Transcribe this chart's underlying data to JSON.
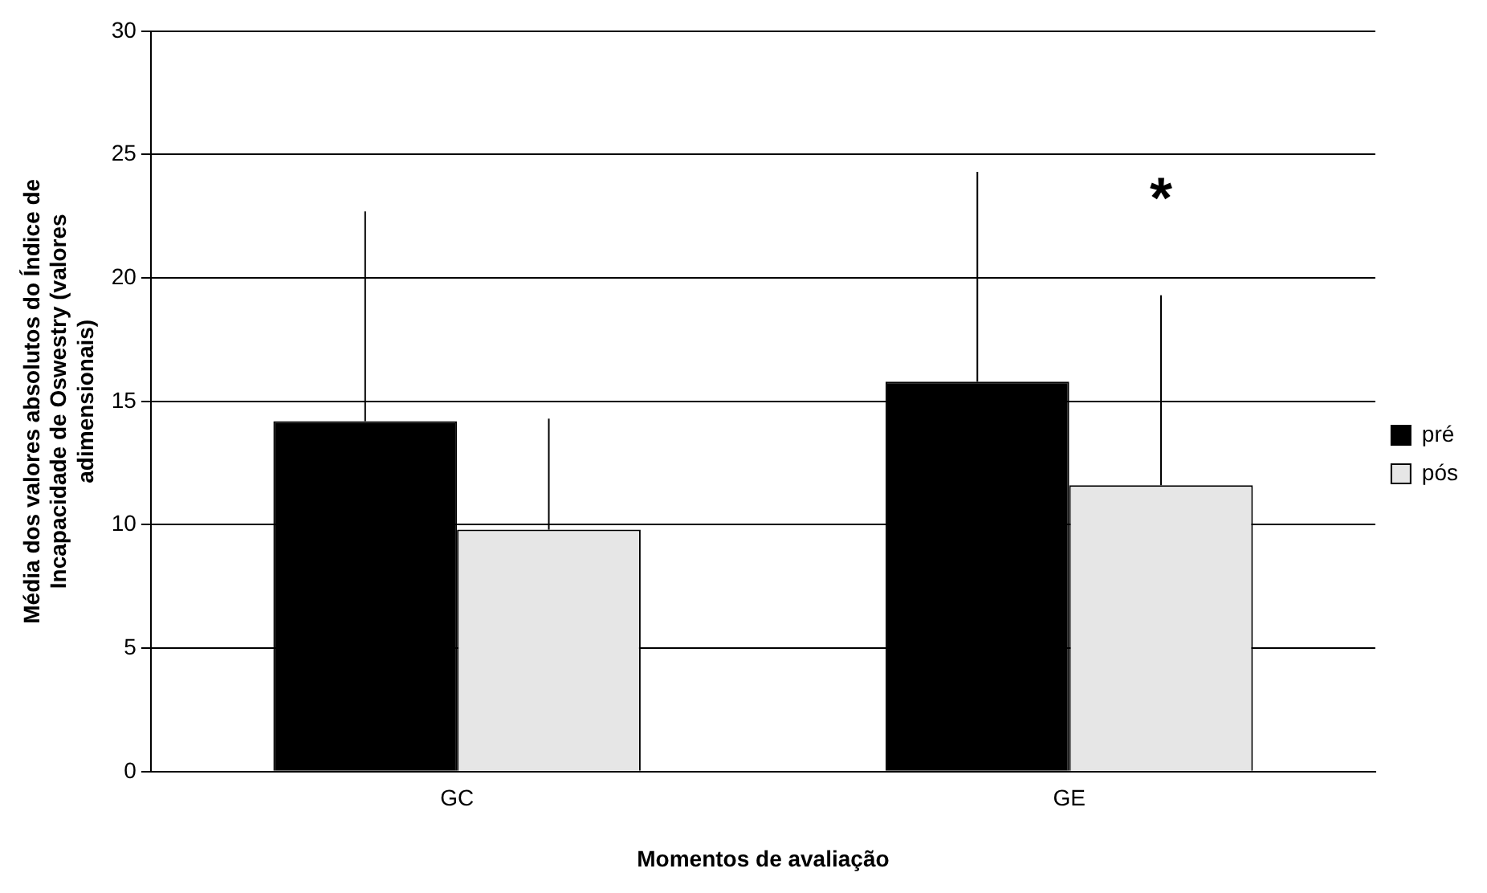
{
  "chart_data": {
    "type": "bar",
    "xlabel": "Momentos de avaliação",
    "ylabel": "Média dos valores absolutos do Índice de Incapacidade de Oswestry (valores adimensionais)",
    "categories": [
      "GC",
      "GE"
    ],
    "series": [
      {
        "name": "pré",
        "color": "#000000",
        "values": [
          14.2,
          15.8
        ],
        "errors": [
          [
            14.2,
            22.7
          ],
          [
            15.8,
            24.3
          ]
        ]
      },
      {
        "name": "pós",
        "color": "#e6e6e6",
        "values": [
          9.8,
          11.6
        ],
        "errors": [
          [
            9.8,
            14.3
          ],
          [
            11.6,
            19.3
          ]
        ]
      }
    ],
    "ylim": [
      0,
      30
    ],
    "yticks": [
      0,
      5,
      10,
      15,
      20,
      25,
      30
    ],
    "grid": "y",
    "legend": "right",
    "annotations": [
      "*"
    ]
  }
}
